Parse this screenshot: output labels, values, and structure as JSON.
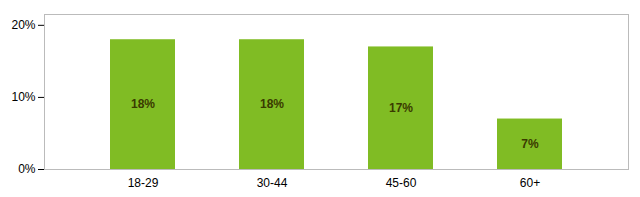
{
  "chart_data": {
    "type": "bar",
    "categories": [
      "18-29",
      "30-44",
      "45-60",
      "60+"
    ],
    "values": [
      18,
      18,
      17,
      7
    ],
    "value_labels": [
      "18%",
      "18%",
      "17%",
      "7%"
    ],
    "color": "#80bc24",
    "ylim": [
      0,
      21.5
    ],
    "yticks": [
      {
        "value": 0,
        "label": "0%"
      },
      {
        "value": 10,
        "label": "10%"
      },
      {
        "value": 20,
        "label": "20%"
      }
    ],
    "grid": false,
    "data_labels": true
  }
}
